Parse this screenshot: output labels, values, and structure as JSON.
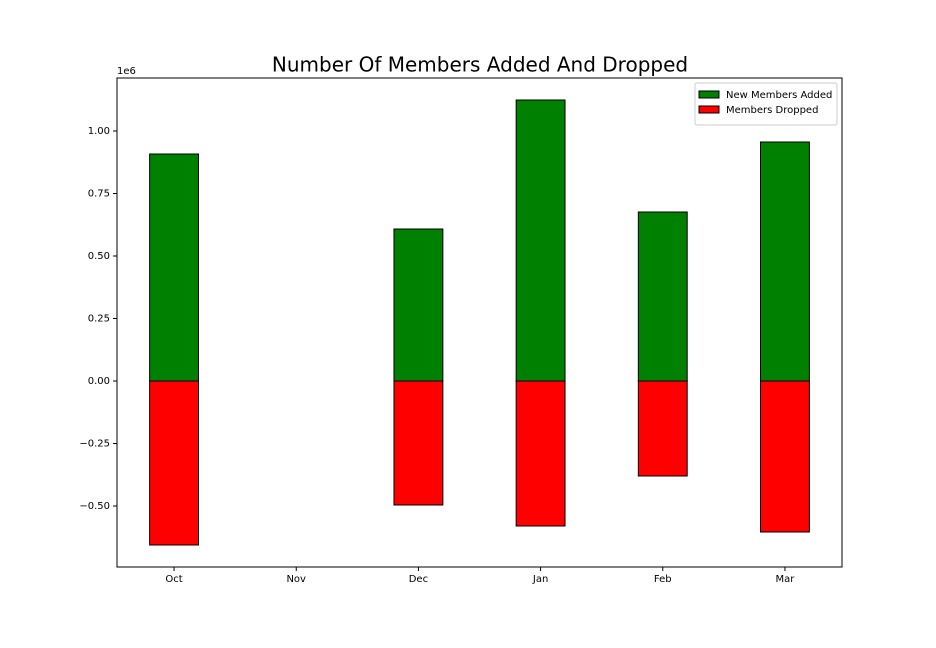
{
  "chart_data": {
    "type": "bar",
    "title": "Number Of Members Added And Dropped",
    "offset_label": "1e6",
    "categories": [
      "Oct",
      "Nov",
      "Dec",
      "Jan",
      "Feb",
      "Mar"
    ],
    "series": [
      {
        "name": "New Members Added",
        "color": "#008000",
        "values": [
          908000,
          0,
          608000,
          1124000,
          676000,
          956000
        ]
      },
      {
        "name": "Members Dropped",
        "color": "#ff0000",
        "values": [
          -656000,
          0,
          -496000,
          -580000,
          -380000,
          -604000
        ]
      }
    ],
    "ylim": [
      -744000,
      1212000
    ],
    "yticks": [
      {
        "value": -500000,
        "label": "−0.50"
      },
      {
        "value": -250000,
        "label": "−0.25"
      },
      {
        "value": 0,
        "label": "0.00"
      },
      {
        "value": 250000,
        "label": "0.25"
      },
      {
        "value": 500000,
        "label": "0.50"
      },
      {
        "value": 750000,
        "label": "0.75"
      },
      {
        "value": 1000000,
        "label": "1.00"
      }
    ],
    "grid": false,
    "legend": "upper right"
  }
}
